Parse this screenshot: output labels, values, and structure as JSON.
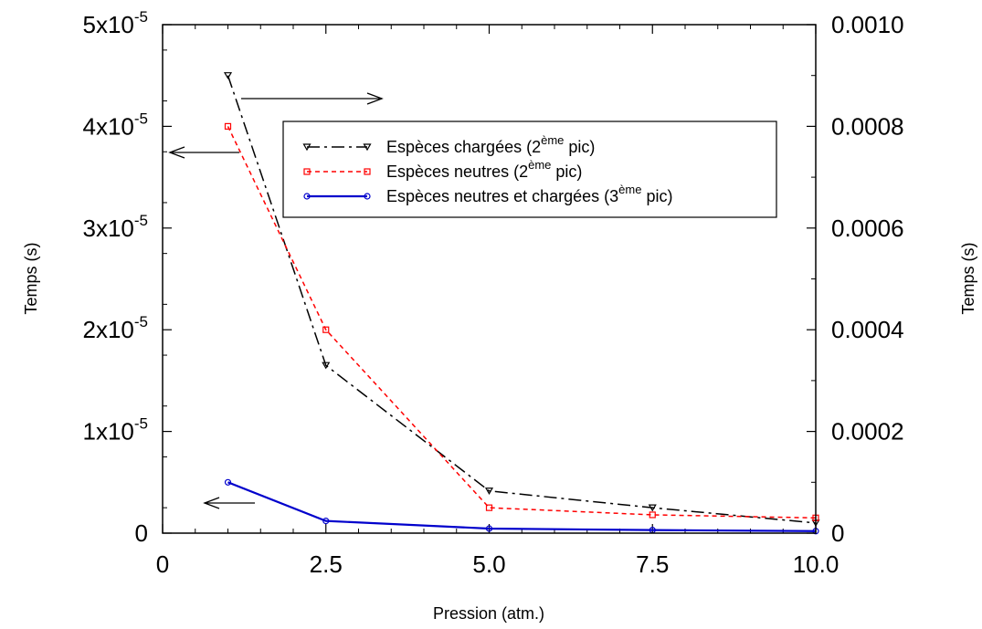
{
  "chart_data": {
    "type": "line",
    "xlabel": "Pression (atm.)",
    "ylabel_left": "Temps (s)",
    "ylabel_right": "Temps (s)",
    "xlim": [
      0,
      10
    ],
    "ylim_left": [
      0,
      5e-05
    ],
    "ylim_right": [
      0,
      0.001
    ],
    "x_ticks": [
      "0",
      "2.5",
      "5.0",
      "7.5",
      "10.0"
    ],
    "y_left_ticks": [
      {
        "base": "0",
        "exp": ""
      },
      {
        "base": "1x10",
        "exp": "-5"
      },
      {
        "base": "2x10",
        "exp": "-5"
      },
      {
        "base": "3x10",
        "exp": "-5"
      },
      {
        "base": "4x10",
        "exp": "-5"
      },
      {
        "base": "5x10",
        "exp": "-5"
      }
    ],
    "y_right_ticks": [
      "0",
      "0.0002",
      "0.0004",
      "0.0006",
      "0.0008",
      "0.0010"
    ],
    "legend_position": "upper-right",
    "series": [
      {
        "name_main": "Espèces chargées (2",
        "name_sup": "ème",
        "name_end": " pic)",
        "axis": "right",
        "color": "#000000",
        "dash": "14,5,3,5",
        "marker": "triangle-down",
        "x": [
          1,
          2.5,
          5,
          7.5,
          10
        ],
        "y": [
          0.0009,
          0.00033,
          8.3e-05,
          5e-05,
          2e-05
        ]
      },
      {
        "name_main": "Espèces neutres (2",
        "name_sup": "ème",
        "name_end": " pic)",
        "axis": "left",
        "color": "#ff0000",
        "dash": "5,4",
        "marker": "square",
        "x": [
          1,
          2.5,
          5,
          7.5,
          10
        ],
        "y": [
          4e-05,
          2e-05,
          2.5e-06,
          1.8e-06,
          1.5e-06
        ]
      },
      {
        "name_main": "Espèces neutres et chargées (3",
        "name_sup": "ème",
        "name_end": " pic)",
        "axis": "left",
        "color": "#0000cc",
        "dash": "",
        "marker": "circle",
        "x": [
          1,
          2.5,
          5,
          7.5,
          10
        ],
        "y": [
          5e-06,
          1.2e-06,
          4.5e-07,
          3e-07,
          2e-07
        ]
      }
    ],
    "annotations": [
      {
        "type": "arrow",
        "direction": "right",
        "meaning": "series refers to right axis"
      },
      {
        "type": "arrow",
        "direction": "left",
        "meaning": "series refers to left axis"
      },
      {
        "type": "arrow",
        "direction": "left",
        "meaning": "series refers to left axis"
      }
    ]
  }
}
